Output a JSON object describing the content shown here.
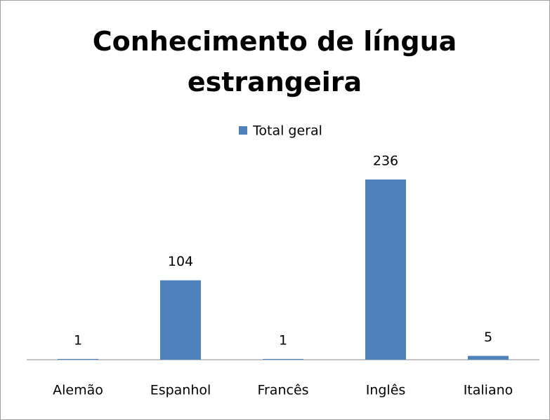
{
  "chart_data": {
    "type": "bar",
    "title": "Conhecimento de língua estrangeira",
    "categories": [
      "Alemão",
      "Espanhol",
      "Francês",
      "Inglês",
      "Italiano"
    ],
    "series": [
      {
        "name": "Total geral",
        "color": "#4f81bd",
        "values": [
          1,
          104,
          1,
          236,
          5
        ]
      }
    ]
  }
}
